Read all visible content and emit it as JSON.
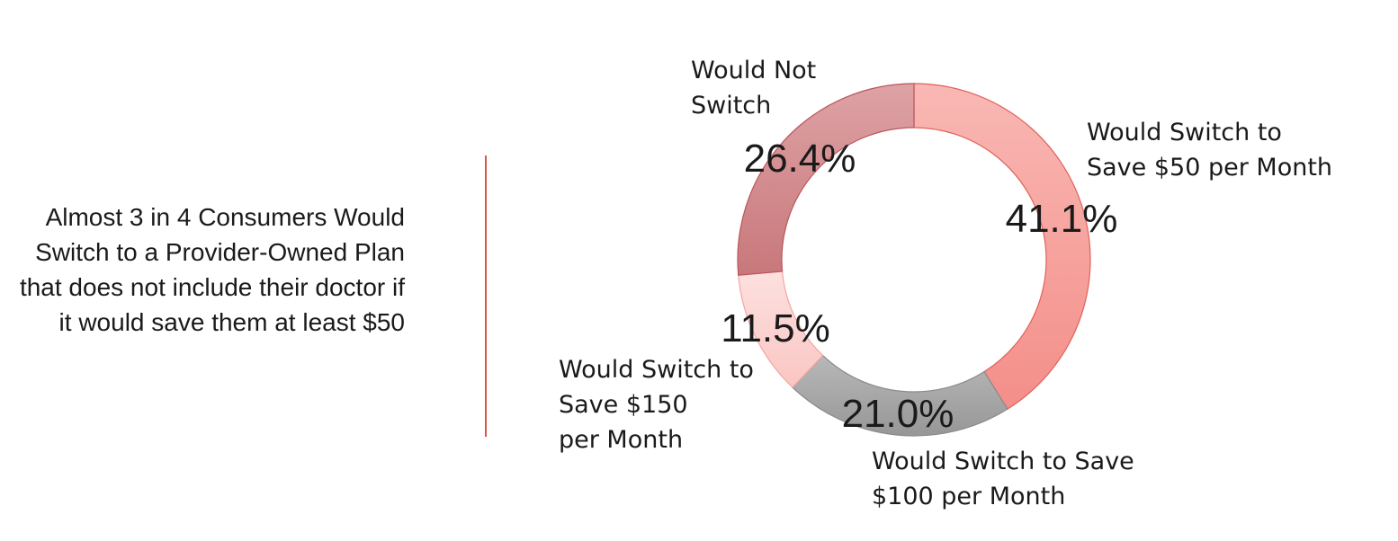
{
  "headline": "Almost 3 in 4 Consumers Would Switch to a Provider-Owned Plan that does not include their doctor if it would save them at least $50",
  "chart_data": {
    "type": "pie",
    "donut": true,
    "legend": "none",
    "series": [
      {
        "name": "",
        "values": [
          41.1,
          21.0,
          11.5,
          26.4
        ]
      }
    ],
    "slices": [
      {
        "category": "Would Switch to Save $50 per Month",
        "label_lines": [
          "Would Switch to",
          "Save $50 per Month"
        ],
        "value": 41.1,
        "value_label": "41.1%",
        "color": "#f6a09b"
      },
      {
        "category": "Would Switch to Save $100 per Month",
        "label_lines": [
          "Would Switch to Save",
          "$100 per Month"
        ],
        "value": 21.0,
        "value_label": "21.0%",
        "color": "#a6a6a6"
      },
      {
        "category": "Would Switch to Save $150 per Month",
        "label_lines": [
          "Would Switch to",
          "Save $150",
          "per Month"
        ],
        "value": 11.5,
        "value_label": "11.5%",
        "color": "#fbd2d0"
      },
      {
        "category": "Would Not Switch",
        "label_lines": [
          "Would Not",
          "Switch"
        ],
        "value": 26.4,
        "value_label": "26.4%",
        "color": "#d1868a"
      }
    ]
  }
}
